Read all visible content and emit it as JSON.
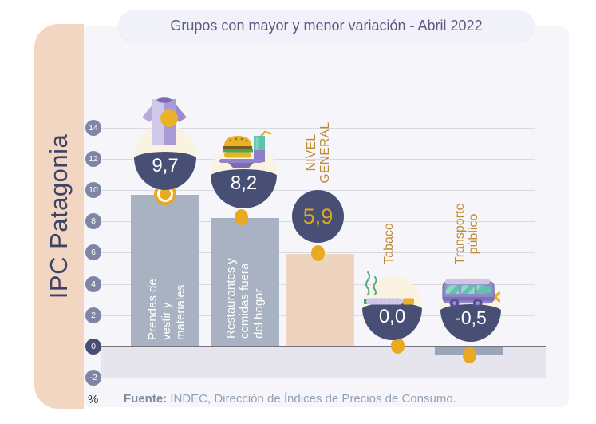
{
  "header": {
    "title": "Grupos con mayor y menor variación - Abril 2022"
  },
  "sidebar": {
    "label": "IPC Patagonia"
  },
  "footer": {
    "unit": "%",
    "source_label": "Fuente:",
    "source_text": "INDEC, Dirección de Índices de Precios de Consumo."
  },
  "colors": {
    "gold": "#e9a920",
    "navy": "#484f75",
    "cream": "#fbf3e2",
    "bar": "#a9b2c3",
    "negative_bar": "#9aa5b9",
    "nivel_bar": "#eed3bf",
    "ochre_label": "#bd8a33",
    "badge": "#7e86a4",
    "badge_zero": "#474e74",
    "sidebar_peach": "#f3d6c1"
  },
  "chart_data": {
    "type": "bar",
    "title": "Grupos con mayor y menor variación - Abril 2022",
    "xlabel": "",
    "ylabel": "%",
    "ylim": [
      -2,
      14
    ],
    "grid": true,
    "yticks": [
      14,
      12,
      10,
      8,
      6,
      4,
      2,
      0,
      -2
    ],
    "categories": [
      "Prendas de vestir y materiales",
      "Restaurantes y comidas fuera del hogar",
      "Nivel General",
      "Tabaco",
      "Transporte público"
    ],
    "values": [
      9.7,
      8.2,
      5.9,
      0.0,
      -0.5
    ],
    "value_labels": [
      "9,7",
      "8,2",
      "5,9",
      "0,0",
      "-0,5"
    ],
    "bar_label_lines": [
      [
        "Prendas de",
        "vestir y",
        "materiales"
      ],
      [
        "Restaurantes y",
        "comidas fuera",
        "del hogar"
      ],
      null,
      null,
      null
    ],
    "top_label_lines": [
      null,
      null,
      [
        "NIVEL",
        "GENERAL"
      ],
      [
        "Tabaco"
      ],
      [
        "Transporte",
        "público"
      ]
    ],
    "icons": [
      "tshirt-icon",
      "fastfood-icon",
      null,
      "cigarette-icon",
      "bus-icon"
    ]
  }
}
